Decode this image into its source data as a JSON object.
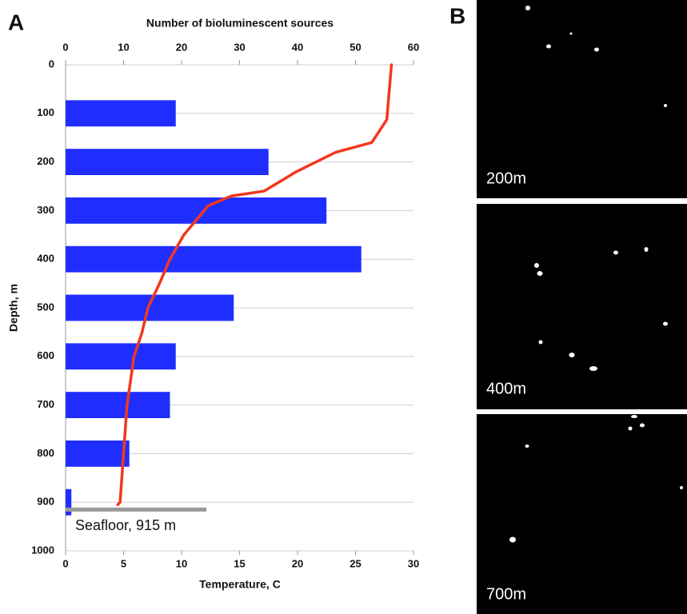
{
  "panel_labels": [
    "A",
    "B"
  ],
  "images": [
    {
      "label": "200m"
    },
    {
      "label": "400m"
    },
    {
      "label": "700m"
    }
  ],
  "chart_data": {
    "type": "bar",
    "x_label": "Number of bioluminescent sources",
    "x2_label": "Temperature, C",
    "y_label": "Depth, m",
    "xlim": [
      0,
      60
    ],
    "xticks": [
      0,
      10,
      20,
      30,
      40,
      50,
      60
    ],
    "x2lim": [
      0,
      30
    ],
    "x2ticks": [
      0,
      5,
      10,
      15,
      20,
      25,
      30
    ],
    "ylim": [
      0,
      1000
    ],
    "yticks": [
      0,
      100,
      200,
      300,
      400,
      500,
      600,
      700,
      800,
      900,
      1000
    ],
    "grid": true,
    "series": [
      {
        "type": "bar",
        "color": "#1f2eff",
        "y": [
          100,
          200,
          300,
          400,
          500,
          600,
          700,
          800,
          900
        ],
        "values": [
          19,
          35,
          45,
          51,
          29,
          19,
          18,
          11,
          1
        ]
      },
      {
        "type": "line",
        "axis": "x2",
        "color": "#f2381c",
        "y": [
          0,
          113,
          160,
          180,
          220,
          260,
          270,
          290,
          350,
          400,
          450,
          500,
          550,
          600,
          650,
          700,
          800,
          900,
          905
        ],
        "values": [
          28.1,
          27.7,
          26.4,
          23.3,
          19.9,
          17.1,
          14.3,
          12.3,
          10.2,
          9.0,
          8.1,
          7.1,
          6.6,
          5.9,
          5.6,
          5.3,
          5.0,
          4.7,
          4.5
        ]
      }
    ],
    "seafloor": {
      "label": "Seafloor, 915 m",
      "depth": 915
    }
  }
}
